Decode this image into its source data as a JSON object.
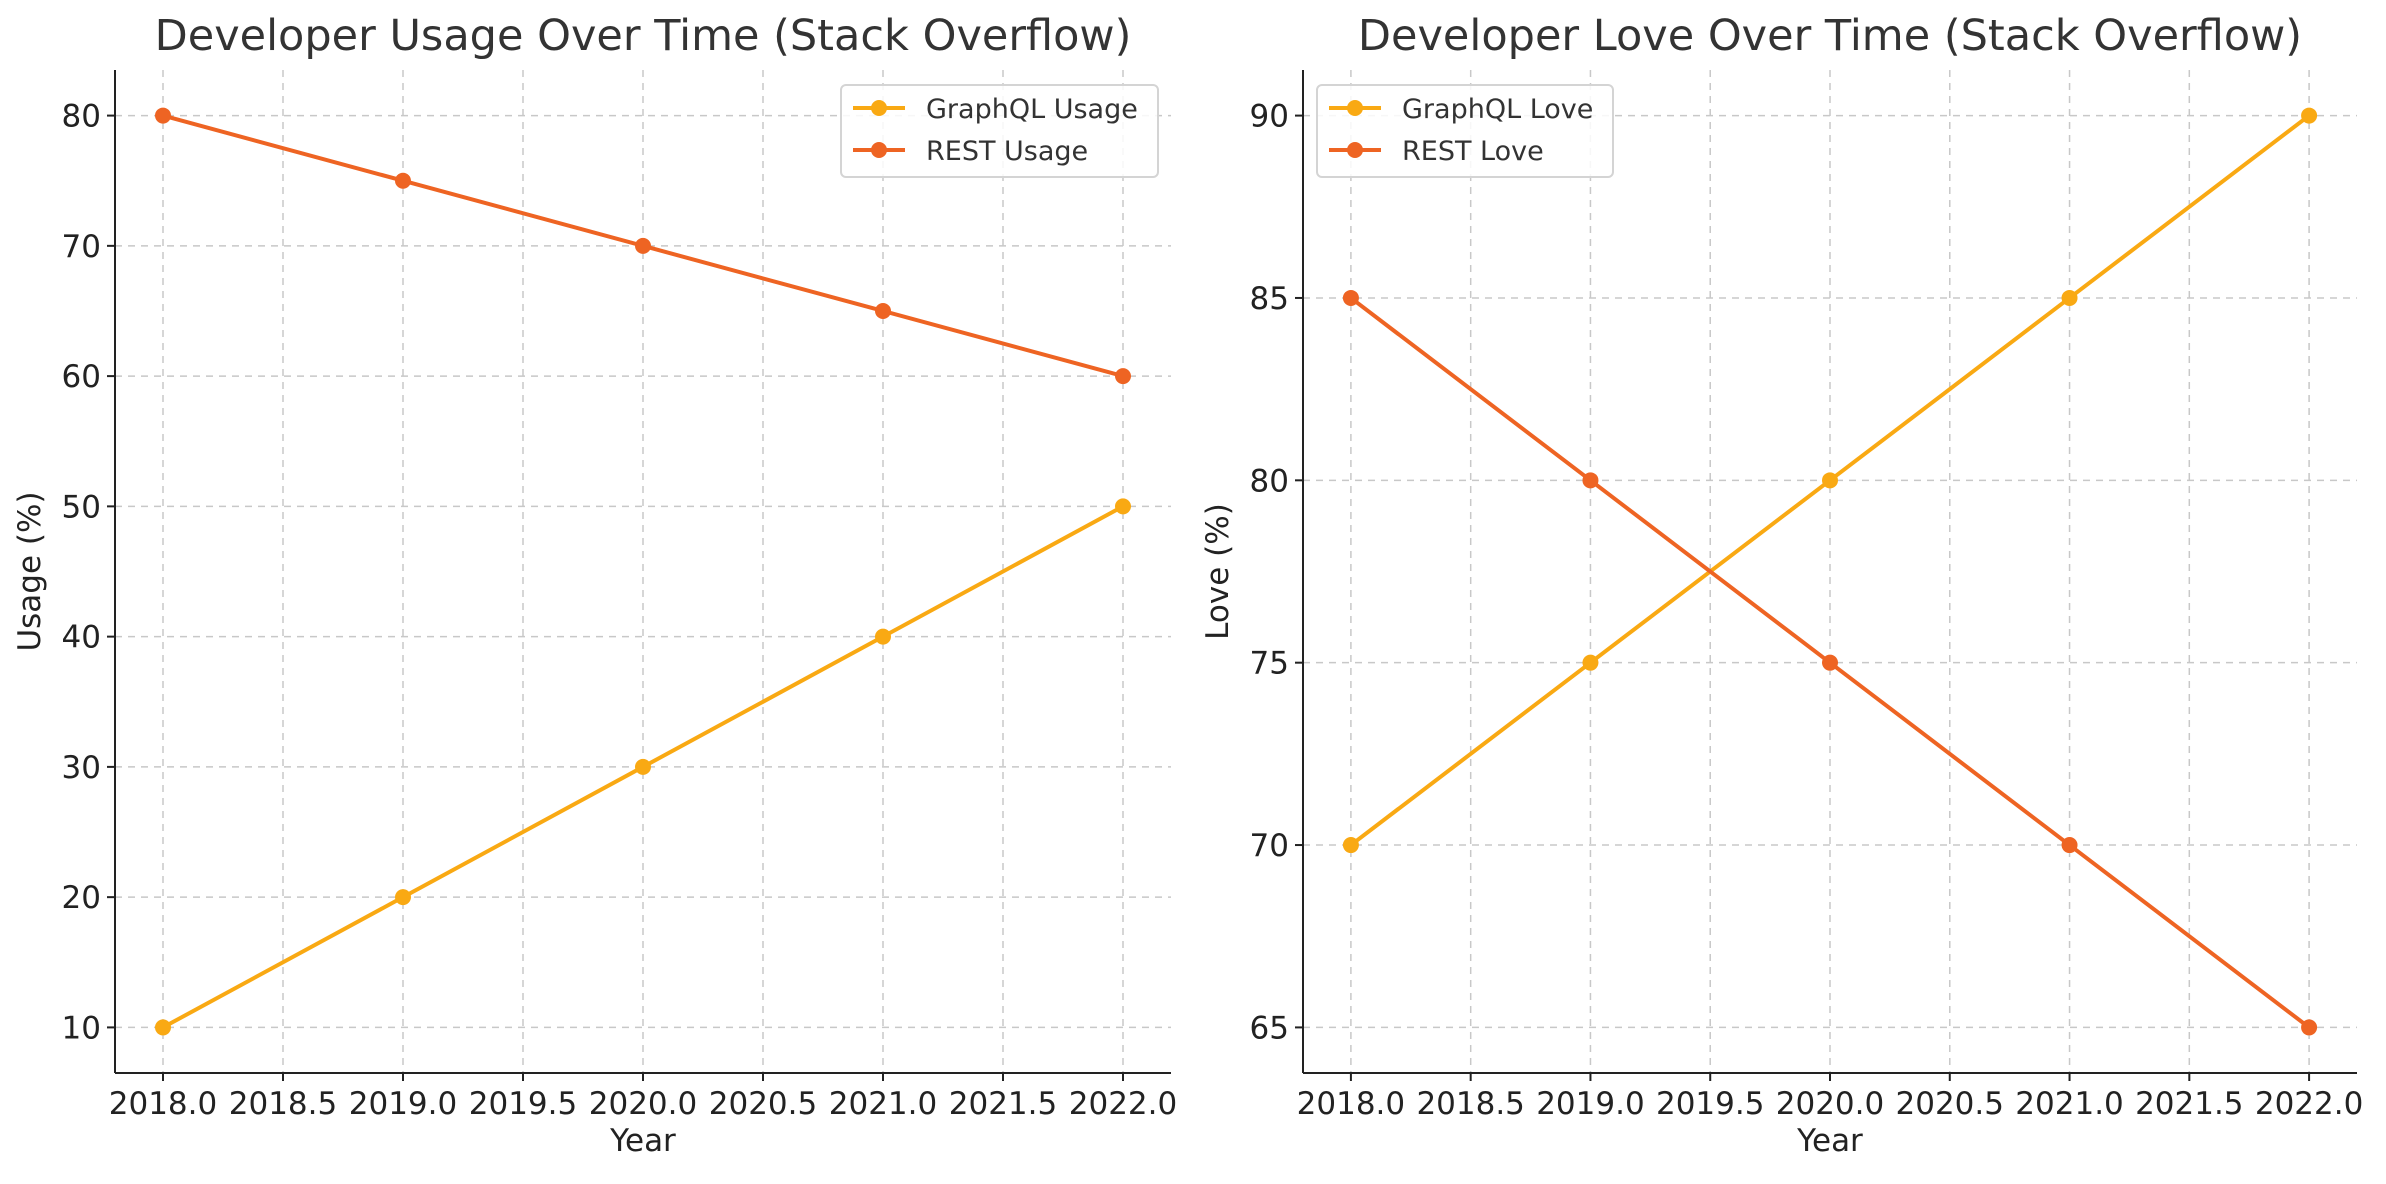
{
  "chart_data": [
    {
      "type": "line",
      "title": "Developer Usage Over Time (Stack Overflow)",
      "xlabel": "Year",
      "ylabel": "Usage (%)",
      "x": [
        2018,
        2019,
        2020,
        2021,
        2022
      ],
      "xticks": [
        "2018.0",
        "2018.5",
        "2019.0",
        "2019.5",
        "2020.0",
        "2020.5",
        "2021.0",
        "2021.5",
        "2022.0"
      ],
      "xtick_values": [
        2018.0,
        2018.5,
        2019.0,
        2019.5,
        2020.0,
        2020.5,
        2021.0,
        2021.5,
        2022.0
      ],
      "yticks": [
        10,
        20,
        30,
        40,
        50,
        60,
        70,
        80
      ],
      "xlim": [
        2017.8,
        2022.2
      ],
      "ylim": [
        6.5,
        83.5
      ],
      "grid": true,
      "legend_position": "top-right",
      "series": [
        {
          "name": "GraphQL Usage",
          "values": [
            10,
            20,
            30,
            40,
            50
          ],
          "color": "#F9A913"
        },
        {
          "name": "REST Usage",
          "values": [
            80,
            75,
            70,
            65,
            60
          ],
          "color": "#EE6423"
        }
      ]
    },
    {
      "type": "line",
      "title": "Developer Love Over Time (Stack Overflow)",
      "xlabel": "Year",
      "ylabel": "Love (%)",
      "x": [
        2018,
        2019,
        2020,
        2021,
        2022
      ],
      "xticks": [
        "2018.0",
        "2018.5",
        "2019.0",
        "2019.5",
        "2020.0",
        "2020.5",
        "2021.0",
        "2021.5",
        "2022.0"
      ],
      "xtick_values": [
        2018.0,
        2018.5,
        2019.0,
        2019.5,
        2020.0,
        2020.5,
        2021.0,
        2021.5,
        2022.0
      ],
      "yticks": [
        65,
        70,
        75,
        80,
        85,
        90
      ],
      "xlim": [
        2017.8,
        2022.2
      ],
      "ylim": [
        63.75,
        91.25
      ],
      "grid": true,
      "legend_position": "top-left",
      "series": [
        {
          "name": "GraphQL Love",
          "values": [
            70,
            75,
            80,
            85,
            90
          ],
          "color": "#F9A913"
        },
        {
          "name": "REST Love",
          "values": [
            85,
            80,
            75,
            70,
            65
          ],
          "color": "#EE6423"
        }
      ]
    }
  ]
}
